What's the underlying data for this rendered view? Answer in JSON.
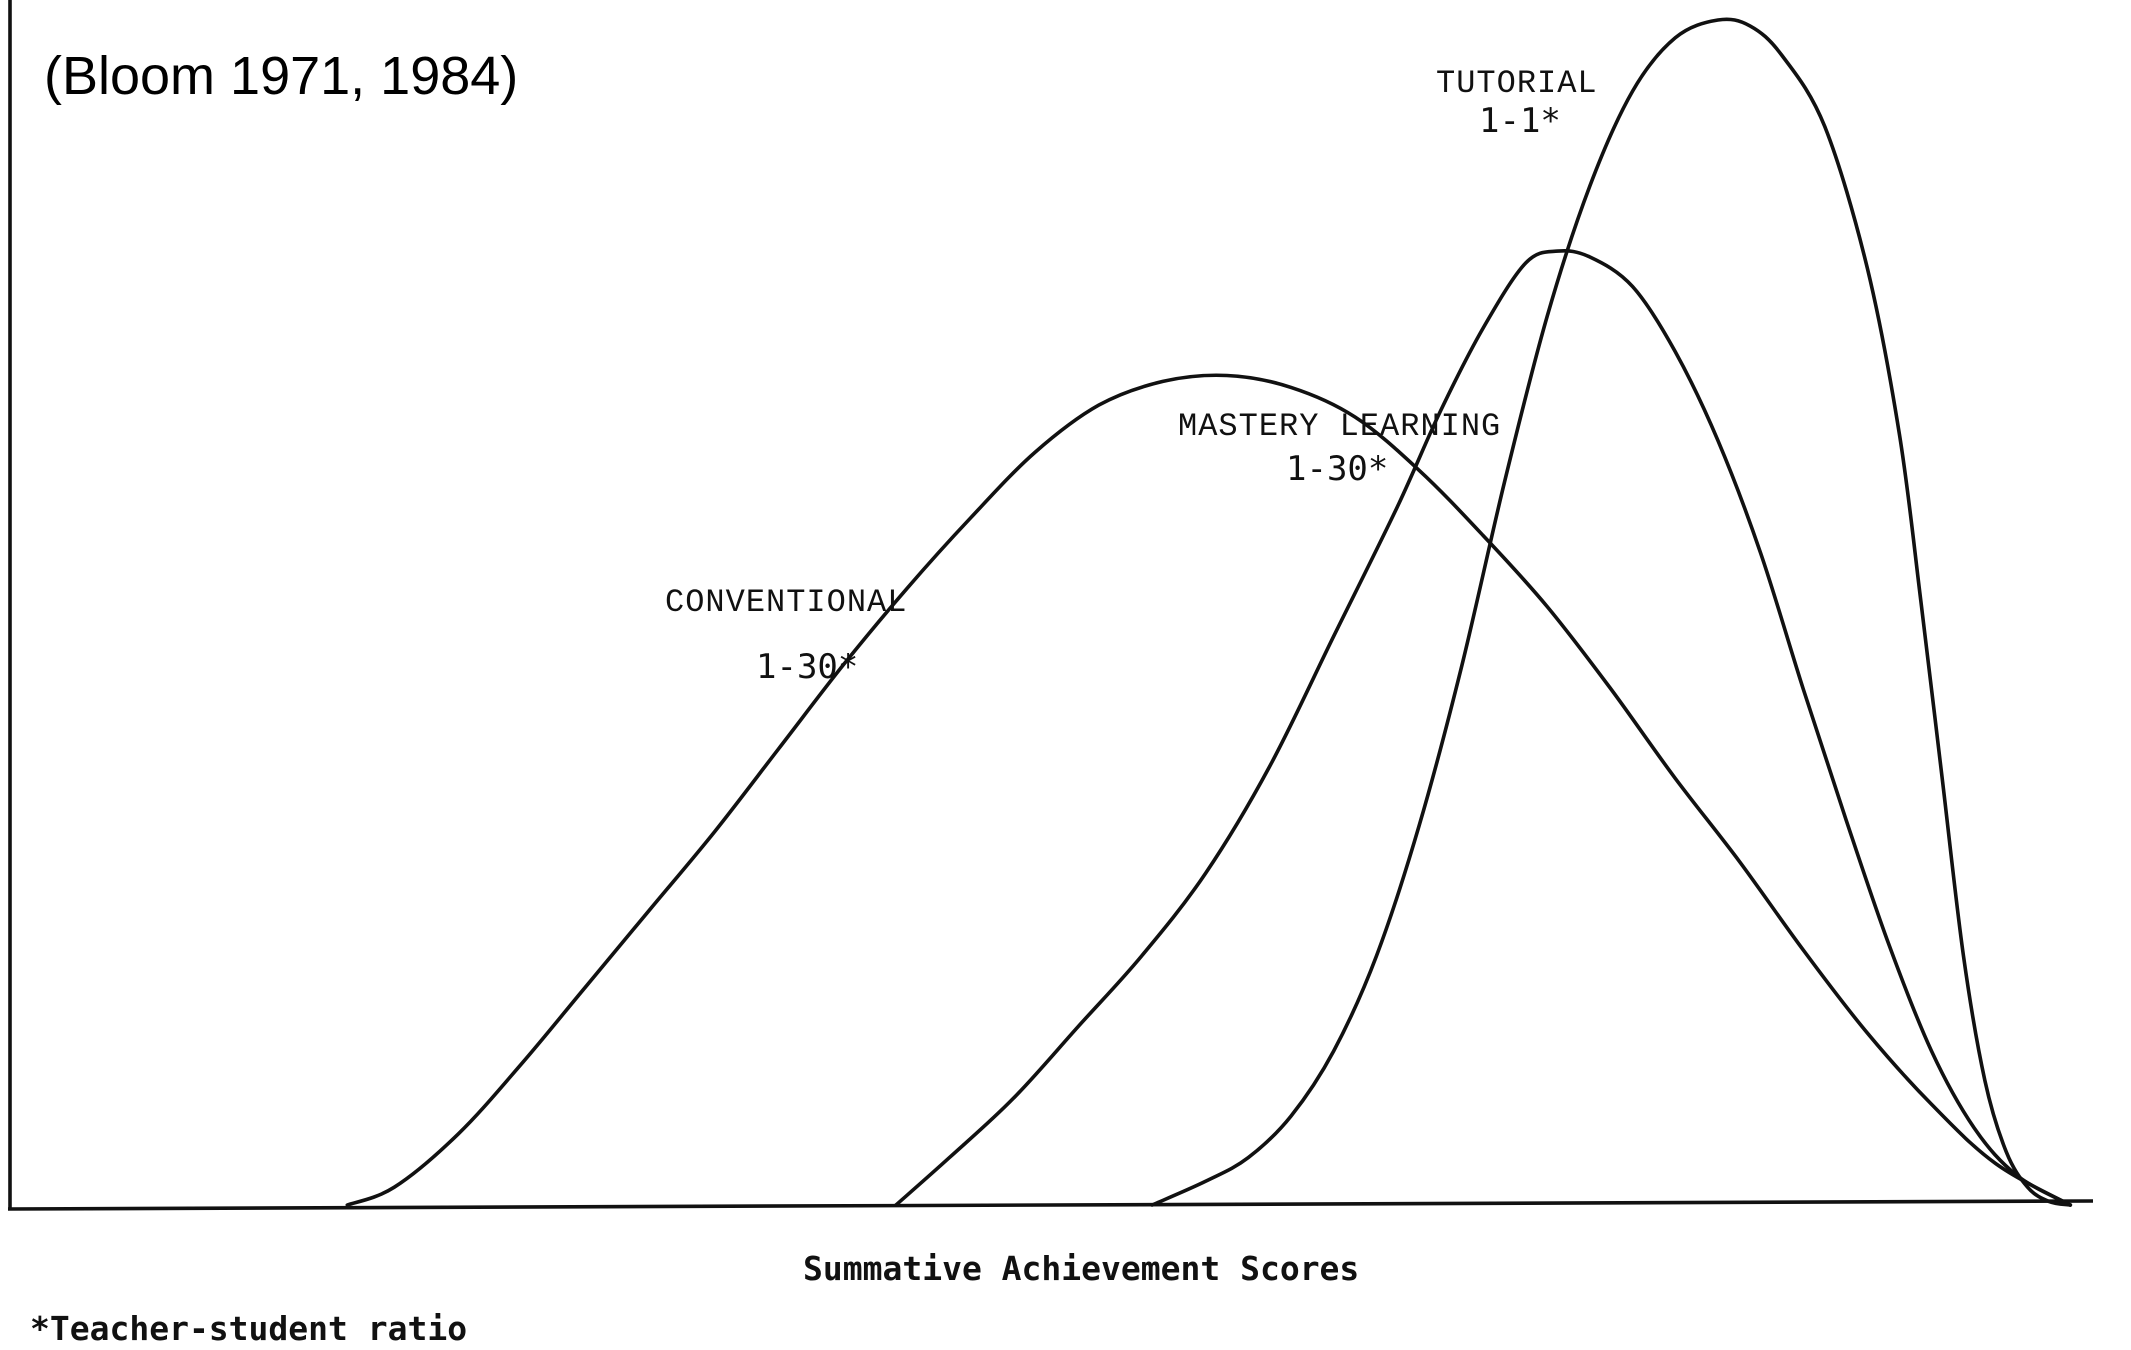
{
  "source_label": "(Bloom 1971, 1984)",
  "footnote": "*Teacher-student ratio",
  "chart_data": {
    "type": "line",
    "title": "",
    "xlabel": "Summative Achievement Scores",
    "ylabel": "",
    "xlim": [
      0,
      100
    ],
    "ylim": [
      0,
      100
    ],
    "grid": false,
    "legend": "none",
    "series": [
      {
        "name": "CONVENTIONAL",
        "label_line1": "CONVENTIONAL",
        "label_line2": "1-30*",
        "x": [
          15.8,
          18,
          21,
          24,
          27,
          30,
          33,
          36,
          39,
          42,
          45,
          48,
          51,
          54,
          57,
          60,
          63,
          66,
          69,
          72,
          75,
          78,
          81,
          84,
          87,
          90,
          93,
          96.5
        ],
        "y": [
          0,
          1.5,
          6,
          12,
          18.5,
          25,
          31.5,
          38.5,
          45.5,
          52,
          58,
          63.5,
          67.5,
          69.5,
          70,
          69,
          66.5,
          62,
          56.5,
          50.5,
          43.5,
          36,
          29,
          21.5,
          14.5,
          8.5,
          3.5,
          0
        ]
      },
      {
        "name": "MASTERY LEARNING",
        "label_line1": "MASTERY LEARNING",
        "label_line2": "1-30*",
        "x": [
          41.5,
          44,
          47,
          50,
          53,
          56,
          59,
          62,
          65,
          67,
          69,
          71,
          72.5,
          74,
          76,
          78,
          80,
          82,
          84,
          86,
          88,
          90,
          92,
          94,
          96.5
        ],
        "y": [
          0,
          4,
          9,
          15,
          21,
          28,
          37,
          48,
          59,
          67,
          74,
          79.5,
          80.5,
          80,
          77.5,
          72,
          64.5,
          55,
          43.5,
          32.5,
          22,
          13,
          6.5,
          2.5,
          0
        ]
      },
      {
        "name": "TUTORIAL",
        "label_line1": "TUTORIAL",
        "label_line2": "1-1*",
        "x": [
          53.5,
          56,
          58,
          60,
          62,
          64,
          66,
          68,
          70,
          72,
          74,
          76,
          78,
          80,
          81.5,
          83,
          85,
          87,
          88.5,
          89.5,
          90.5,
          91.5,
          92.5,
          93.5,
          94.5,
          95.5,
          96.5
        ],
        "y": [
          0,
          2,
          4,
          7.5,
          13,
          21,
          32,
          45.5,
          61,
          75,
          86,
          94,
          98.5,
          100,
          99.5,
          97,
          91,
          79,
          65,
          51,
          36,
          21,
          10.5,
          4.5,
          1.5,
          0.3,
          0
        ]
      }
    ]
  }
}
